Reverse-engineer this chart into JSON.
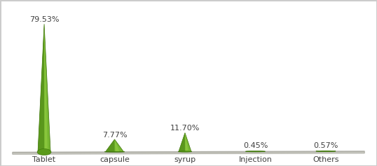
{
  "categories": [
    "Tablet",
    "capsule",
    "syrup",
    "Injection",
    "Others"
  ],
  "values": [
    79.53,
    7.77,
    11.7,
    0.45,
    0.57
  ],
  "labels": [
    "79.53%",
    "7.77%",
    "11.70%",
    "0.45%",
    "0.57%"
  ],
  "cone_main": "#78b832",
  "cone_left": "#4e8a14",
  "cone_right": "#9cd648",
  "cone_edge": "#3a7008",
  "ellipse_color": "#5a9a1a",
  "floor_top": "#f0f0ec",
  "floor_side": "#d8d8d0",
  "floor_edge": "#b0b0a8",
  "background_color": "#ffffff",
  "text_color": "#404040",
  "label_fontsize": 8,
  "cat_fontsize": 8,
  "x_positions": [
    0.5,
    1.5,
    2.5,
    3.5,
    4.5
  ]
}
